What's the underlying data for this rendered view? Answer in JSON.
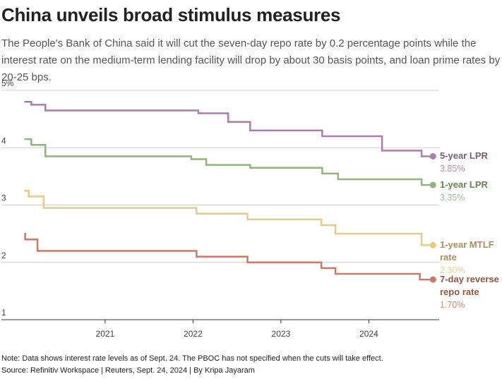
{
  "chart_data": {
    "type": "step-line",
    "title": "China unveils broad stimulus measures",
    "subtitle": "The People's Bank of China said it will cut the seven-day repo rate by 0.2 percentage points while the interest rate on the medium-term lending facility will drop by about 30 basis points, and loan prime rates by 20-25 bps.",
    "note": "Note: Data shows interest rate levels as of Sept. 24. The PBOC has not specified when the cuts will take effect.",
    "source": "Source: Refinitiv Workspace | Reuters, Sept. 24, 2024 | By Kripa Jayaram",
    "xlim": [
      2019.82,
      2024.8
    ],
    "xticks": [
      2021,
      2022,
      2023,
      2024
    ],
    "ylim": [
      1,
      5
    ],
    "yticks": [
      1,
      2,
      3,
      4,
      {
        "value": 5,
        "label": "5%"
      }
    ],
    "grid": true,
    "series": [
      {
        "name": "5-year LPR",
        "color": "#a97ea8",
        "x": [
          2020.08,
          2020.16,
          2020.32,
          2022.06,
          2022.4,
          2022.65,
          2023.47,
          2024.15,
          2024.6,
          2024.73
        ],
        "values": [
          4.8,
          4.75,
          4.65,
          4.6,
          4.45,
          4.3,
          4.2,
          3.95,
          3.85,
          3.85
        ],
        "value_labels": [
          null,
          null,
          null,
          null,
          null,
          null,
          null,
          null,
          null,
          "3.85%"
        ]
      },
      {
        "name": "1-year LPR",
        "color": "#91b47f",
        "x": [
          2020.08,
          2020.16,
          2020.32,
          2021.98,
          2022.15,
          2022.65,
          2023.47,
          2023.65,
          2024.6,
          2024.73
        ],
        "values": [
          4.15,
          4.05,
          3.85,
          3.8,
          3.7,
          3.65,
          3.55,
          3.45,
          3.35,
          3.35
        ],
        "value_labels": [
          null,
          null,
          null,
          null,
          null,
          null,
          null,
          null,
          null,
          "3.35%"
        ]
      },
      {
        "name": "1-year MTLF rate",
        "color": "#e8ca82",
        "x": [
          2020.08,
          2020.13,
          2020.3,
          2022.04,
          2022.62,
          2023.46,
          2023.62,
          2024.6,
          2024.73
        ],
        "values": [
          3.25,
          3.15,
          2.95,
          2.85,
          2.75,
          2.65,
          2.5,
          2.3,
          2.3
        ],
        "value_labels": [
          null,
          null,
          null,
          null,
          null,
          null,
          null,
          null,
          "2.30%"
        ]
      },
      {
        "name": "7-day reverse repo rate",
        "color": "#c97a62",
        "x": [
          2020.08,
          2020.09,
          2020.23,
          2022.04,
          2022.62,
          2023.46,
          2023.62,
          2024.58,
          2024.73
        ],
        "values": [
          2.5,
          2.4,
          2.2,
          2.1,
          2.0,
          1.9,
          1.8,
          1.7,
          1.7
        ],
        "value_labels": [
          null,
          null,
          null,
          null,
          null,
          null,
          null,
          null,
          "1.70%"
        ]
      }
    ]
  }
}
